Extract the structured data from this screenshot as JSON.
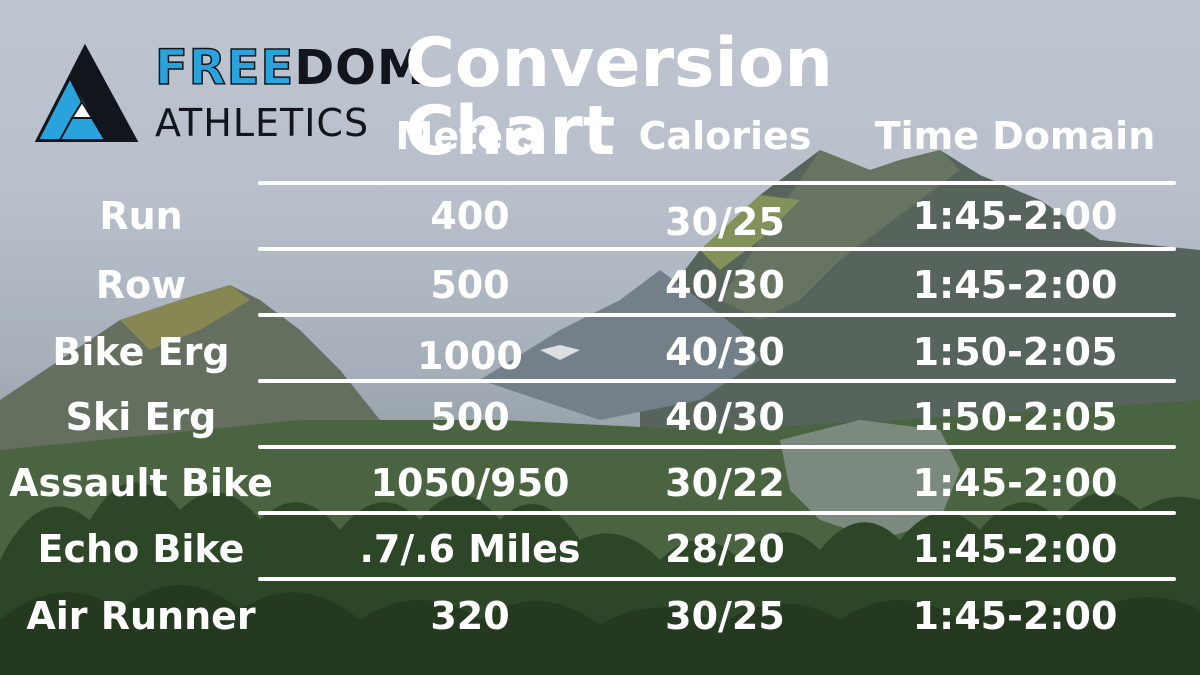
{
  "brand": {
    "name_part1": "FREE",
    "name_part2": "DOM",
    "subtitle": "ATHLETICS",
    "accent_color": "#2aa3dc",
    "dark_color": "#12161c"
  },
  "title": "Conversion Chart",
  "columns": [
    "Meters",
    "Calories",
    "Time Domain"
  ],
  "rows": [
    {
      "label": "Run",
      "meters": "400",
      "calories": "30/25",
      "time": "1:45-2:00"
    },
    {
      "label": "Row",
      "meters": "500",
      "calories": "40/30",
      "time": "1:45-2:00"
    },
    {
      "label": "Bike Erg",
      "meters": "1000",
      "calories": "40/30",
      "time": "1:50-2:05"
    },
    {
      "label": "Ski Erg",
      "meters": "500",
      "calories": "40/30",
      "time": "1:50-2:05"
    },
    {
      "label": "Assault Bike",
      "meters": "1050/950",
      "calories": "30/22",
      "time": "1:45-2:00"
    },
    {
      "label": "Echo Bike",
      "meters": ".7/.6 Miles",
      "calories": "28/20",
      "time": "1:45-2:00"
    },
    {
      "label": "Air Runner",
      "meters": "320",
      "calories": "30/25",
      "time": "1:45-2:00"
    }
  ]
}
